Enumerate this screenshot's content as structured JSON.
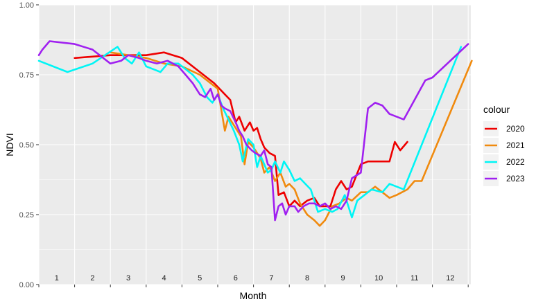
{
  "chart_data": {
    "type": "line",
    "xlabel": "Month",
    "ylabel": "NDVI",
    "ylim": [
      0,
      1
    ],
    "yticks": [
      "0.00",
      "0.25",
      "0.50",
      "0.75",
      "1.00"
    ],
    "month_labels": [
      "1",
      "2",
      "3",
      "4",
      "5",
      "6",
      "7",
      "8",
      "9",
      "10",
      "11",
      "12"
    ],
    "grid": true,
    "legend": {
      "title": "colour",
      "position": "right"
    },
    "series": [
      {
        "name": "2020",
        "color": "#ee0000",
        "points": [
          [
            1.0,
            0.81
          ],
          [
            2.0,
            0.82
          ],
          [
            3.0,
            0.82
          ],
          [
            3.5,
            0.83
          ],
          [
            4.0,
            0.81
          ],
          [
            4.5,
            0.76
          ],
          [
            4.9,
            0.72
          ],
          [
            5.2,
            0.68
          ],
          [
            5.35,
            0.66
          ],
          [
            5.5,
            0.58
          ],
          [
            5.6,
            0.6
          ],
          [
            5.75,
            0.55
          ],
          [
            5.9,
            0.58
          ],
          [
            6.0,
            0.55
          ],
          [
            6.1,
            0.56
          ],
          [
            6.2,
            0.52
          ],
          [
            6.3,
            0.49
          ],
          [
            6.45,
            0.47
          ],
          [
            6.6,
            0.46
          ],
          [
            6.7,
            0.32
          ],
          [
            6.85,
            0.33
          ],
          [
            7.0,
            0.28
          ],
          [
            7.15,
            0.3
          ],
          [
            7.3,
            0.28
          ],
          [
            7.5,
            0.3
          ],
          [
            7.7,
            0.31
          ],
          [
            7.85,
            0.28
          ],
          [
            8.0,
            0.28
          ],
          [
            8.15,
            0.28
          ],
          [
            8.3,
            0.34
          ],
          [
            8.45,
            0.37
          ],
          [
            8.6,
            0.34
          ],
          [
            8.75,
            0.35
          ],
          [
            9.0,
            0.43
          ],
          [
            9.2,
            0.44
          ],
          [
            9.4,
            0.44
          ],
          [
            9.6,
            0.44
          ],
          [
            9.8,
            0.44
          ],
          [
            9.95,
            0.51
          ],
          [
            10.1,
            0.48
          ],
          [
            10.3,
            0.51
          ]
        ]
      },
      {
        "name": "2021",
        "color": "#f08a0e",
        "points": [
          [
            2.0,
            0.83
          ],
          [
            2.5,
            0.82
          ],
          [
            3.0,
            0.81
          ],
          [
            3.5,
            0.79
          ],
          [
            4.0,
            0.78
          ],
          [
            4.5,
            0.75
          ],
          [
            5.0,
            0.7
          ],
          [
            5.2,
            0.55
          ],
          [
            5.3,
            0.6
          ],
          [
            5.5,
            0.56
          ],
          [
            5.65,
            0.53
          ],
          [
            5.75,
            0.43
          ],
          [
            5.85,
            0.51
          ],
          [
            6.0,
            0.49
          ],
          [
            6.1,
            0.47
          ],
          [
            6.2,
            0.45
          ],
          [
            6.3,
            0.4
          ],
          [
            6.45,
            0.42
          ],
          [
            6.6,
            0.37
          ],
          [
            6.75,
            0.4
          ],
          [
            6.9,
            0.35
          ],
          [
            7.0,
            0.36
          ],
          [
            7.15,
            0.34
          ],
          [
            7.3,
            0.29
          ],
          [
            7.5,
            0.25
          ],
          [
            7.7,
            0.23
          ],
          [
            7.85,
            0.21
          ],
          [
            8.0,
            0.23
          ],
          [
            8.2,
            0.28
          ],
          [
            8.4,
            0.29
          ],
          [
            8.6,
            0.31
          ],
          [
            8.75,
            0.3
          ],
          [
            9.0,
            0.33
          ],
          [
            9.2,
            0.33
          ],
          [
            9.4,
            0.35
          ],
          [
            9.6,
            0.33
          ],
          [
            9.8,
            0.31
          ],
          [
            10.0,
            0.32
          ],
          [
            10.3,
            0.34
          ],
          [
            10.5,
            0.37
          ],
          [
            10.7,
            0.37
          ],
          [
            12.1,
            0.8
          ]
        ]
      },
      {
        "name": "2022",
        "color": "#00f5f5",
        "points": [
          [
            0.0,
            0.8
          ],
          [
            0.8,
            0.76
          ],
          [
            1.5,
            0.79
          ],
          [
            2.2,
            0.85
          ],
          [
            2.4,
            0.81
          ],
          [
            2.6,
            0.79
          ],
          [
            2.8,
            0.83
          ],
          [
            3.0,
            0.78
          ],
          [
            3.2,
            0.77
          ],
          [
            3.4,
            0.76
          ],
          [
            3.6,
            0.79
          ],
          [
            3.9,
            0.79
          ],
          [
            4.1,
            0.77
          ],
          [
            4.3,
            0.75
          ],
          [
            4.5,
            0.72
          ],
          [
            4.7,
            0.67
          ],
          [
            4.85,
            0.65
          ],
          [
            5.0,
            0.68
          ],
          [
            5.15,
            0.63
          ],
          [
            5.3,
            0.59
          ],
          [
            5.45,
            0.55
          ],
          [
            5.6,
            0.5
          ],
          [
            5.7,
            0.44
          ],
          [
            5.85,
            0.52
          ],
          [
            6.0,
            0.5
          ],
          [
            6.1,
            0.42
          ],
          [
            6.2,
            0.46
          ],
          [
            6.4,
            0.4
          ],
          [
            6.5,
            0.41
          ],
          [
            6.6,
            0.44
          ],
          [
            6.75,
            0.4
          ],
          [
            6.85,
            0.44
          ],
          [
            7.0,
            0.41
          ],
          [
            7.15,
            0.37
          ],
          [
            7.3,
            0.38
          ],
          [
            7.45,
            0.36
          ],
          [
            7.6,
            0.34
          ],
          [
            7.8,
            0.26
          ],
          [
            8.0,
            0.27
          ],
          [
            8.2,
            0.26
          ],
          [
            8.35,
            0.27
          ],
          [
            8.55,
            0.32
          ],
          [
            8.75,
            0.24
          ],
          [
            8.9,
            0.3
          ],
          [
            9.1,
            0.32
          ],
          [
            9.3,
            0.34
          ],
          [
            9.6,
            0.33
          ],
          [
            9.8,
            0.36
          ],
          [
            10.0,
            0.35
          ],
          [
            10.2,
            0.34
          ],
          [
            11.8,
            0.85
          ]
        ]
      },
      {
        "name": "2023",
        "color": "#a020f0",
        "points": [
          [
            0.0,
            0.82
          ],
          [
            0.1,
            0.84
          ],
          [
            0.3,
            0.87
          ],
          [
            1.0,
            0.86
          ],
          [
            1.5,
            0.84
          ],
          [
            2.0,
            0.79
          ],
          [
            2.3,
            0.8
          ],
          [
            2.5,
            0.82
          ],
          [
            2.8,
            0.81
          ],
          [
            3.0,
            0.8
          ],
          [
            3.3,
            0.79
          ],
          [
            3.6,
            0.8
          ],
          [
            3.9,
            0.78
          ],
          [
            4.1,
            0.75
          ],
          [
            4.3,
            0.72
          ],
          [
            4.5,
            0.68
          ],
          [
            4.65,
            0.67
          ],
          [
            4.8,
            0.7
          ],
          [
            4.9,
            0.66
          ],
          [
            5.0,
            0.68
          ],
          [
            5.1,
            0.64
          ],
          [
            5.2,
            0.63
          ],
          [
            5.35,
            0.62
          ],
          [
            5.5,
            0.58
          ],
          [
            5.6,
            0.55
          ],
          [
            5.7,
            0.53
          ],
          [
            5.8,
            0.5
          ],
          [
            5.95,
            0.48
          ],
          [
            6.05,
            0.47
          ],
          [
            6.2,
            0.46
          ],
          [
            6.3,
            0.48
          ],
          [
            6.4,
            0.43
          ],
          [
            6.5,
            0.42
          ],
          [
            6.6,
            0.23
          ],
          [
            6.7,
            0.28
          ],
          [
            6.8,
            0.29
          ],
          [
            6.9,
            0.25
          ],
          [
            7.0,
            0.28
          ],
          [
            7.15,
            0.28
          ],
          [
            7.25,
            0.26
          ],
          [
            7.4,
            0.28
          ],
          [
            7.55,
            0.29
          ],
          [
            7.7,
            0.29
          ],
          [
            7.85,
            0.28
          ],
          [
            8.0,
            0.29
          ],
          [
            8.15,
            0.27
          ],
          [
            8.3,
            0.28
          ],
          [
            8.45,
            0.27
          ],
          [
            8.6,
            0.3
          ],
          [
            8.75,
            0.38
          ],
          [
            9.0,
            0.4
          ],
          [
            9.2,
            0.63
          ],
          [
            9.4,
            0.65
          ],
          [
            9.6,
            0.64
          ],
          [
            9.8,
            0.61
          ],
          [
            10.0,
            0.6
          ],
          [
            10.2,
            0.59
          ],
          [
            10.8,
            0.73
          ],
          [
            11.0,
            0.74
          ],
          [
            12.0,
            0.86
          ]
        ]
      }
    ]
  }
}
